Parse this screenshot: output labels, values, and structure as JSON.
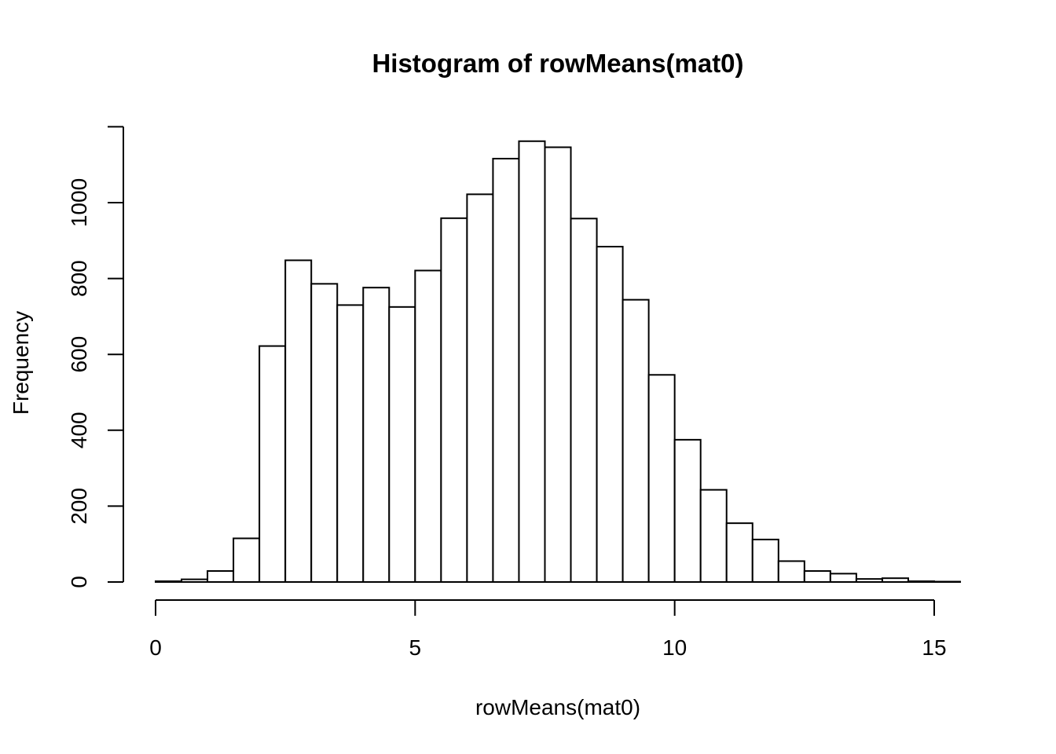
{
  "chart_data": {
    "type": "bar",
    "title": "Histogram of rowMeans(mat0)",
    "xlabel": "rowMeans(mat0)",
    "ylabel": "Frequency",
    "x_ticks": [
      0,
      5,
      10,
      15
    ],
    "y_ticks": [
      0,
      200,
      400,
      600,
      800,
      1000
    ],
    "xlim": [
      0,
      15.5
    ],
    "ylim": [
      0,
      1200
    ],
    "grid": false,
    "legend": "none",
    "bin_width": 0.5,
    "bins": [
      {
        "start": 0.0,
        "end": 0.5,
        "count": 2
      },
      {
        "start": 0.5,
        "end": 1.0,
        "count": 7
      },
      {
        "start": 1.0,
        "end": 1.5,
        "count": 29
      },
      {
        "start": 1.5,
        "end": 2.0,
        "count": 115
      },
      {
        "start": 2.0,
        "end": 2.5,
        "count": 622
      },
      {
        "start": 2.5,
        "end": 3.0,
        "count": 848
      },
      {
        "start": 3.0,
        "end": 3.5,
        "count": 786
      },
      {
        "start": 3.5,
        "end": 4.0,
        "count": 730
      },
      {
        "start": 4.0,
        "end": 4.5,
        "count": 776
      },
      {
        "start": 4.5,
        "end": 5.0,
        "count": 725
      },
      {
        "start": 5.0,
        "end": 5.5,
        "count": 821
      },
      {
        "start": 5.5,
        "end": 6.0,
        "count": 959
      },
      {
        "start": 6.0,
        "end": 6.5,
        "count": 1022
      },
      {
        "start": 6.5,
        "end": 7.0,
        "count": 1116
      },
      {
        "start": 7.0,
        "end": 7.5,
        "count": 1162
      },
      {
        "start": 7.5,
        "end": 8.0,
        "count": 1146
      },
      {
        "start": 8.0,
        "end": 8.5,
        "count": 958
      },
      {
        "start": 8.5,
        "end": 9.0,
        "count": 884
      },
      {
        "start": 9.0,
        "end": 9.5,
        "count": 744
      },
      {
        "start": 9.5,
        "end": 10.0,
        "count": 546
      },
      {
        "start": 10.0,
        "end": 10.5,
        "count": 375
      },
      {
        "start": 10.5,
        "end": 11.0,
        "count": 243
      },
      {
        "start": 11.0,
        "end": 11.5,
        "count": 155
      },
      {
        "start": 11.5,
        "end": 12.0,
        "count": 112
      },
      {
        "start": 12.0,
        "end": 12.5,
        "count": 55
      },
      {
        "start": 12.5,
        "end": 13.0,
        "count": 29
      },
      {
        "start": 13.0,
        "end": 13.5,
        "count": 22
      },
      {
        "start": 13.5,
        "end": 14.0,
        "count": 8
      },
      {
        "start": 14.0,
        "end": 14.5,
        "count": 10
      },
      {
        "start": 14.5,
        "end": 15.0,
        "count": 2
      },
      {
        "start": 15.0,
        "end": 15.5,
        "count": 1
      }
    ],
    "colors": {
      "bar_fill": "#ffffff",
      "bar_stroke": "#000000",
      "background": "#ffffff"
    }
  }
}
